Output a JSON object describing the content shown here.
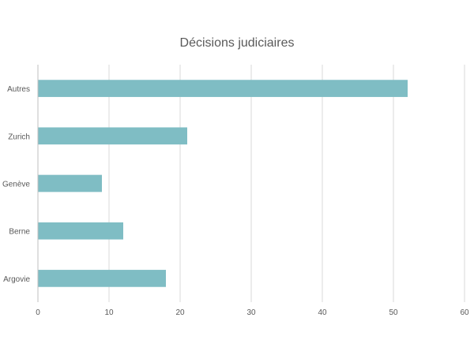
{
  "chart_data": {
    "type": "bar",
    "orientation": "horizontal",
    "title": "Décisions judiciaires",
    "categories": [
      "Autres",
      "Zurich",
      "Genève",
      "Berne",
      "Argovie"
    ],
    "values": [
      52,
      21,
      9,
      12,
      18
    ],
    "xlim": [
      0,
      60
    ],
    "x_ticks": [
      0,
      10,
      20,
      30,
      40,
      50,
      60
    ],
    "xlabel": "",
    "ylabel": "",
    "grid": "vertical",
    "legend": "none",
    "bar_color": "#7fbdc4",
    "grid_color": "#d9d9d9",
    "axis_color": "#bfbfbf"
  }
}
